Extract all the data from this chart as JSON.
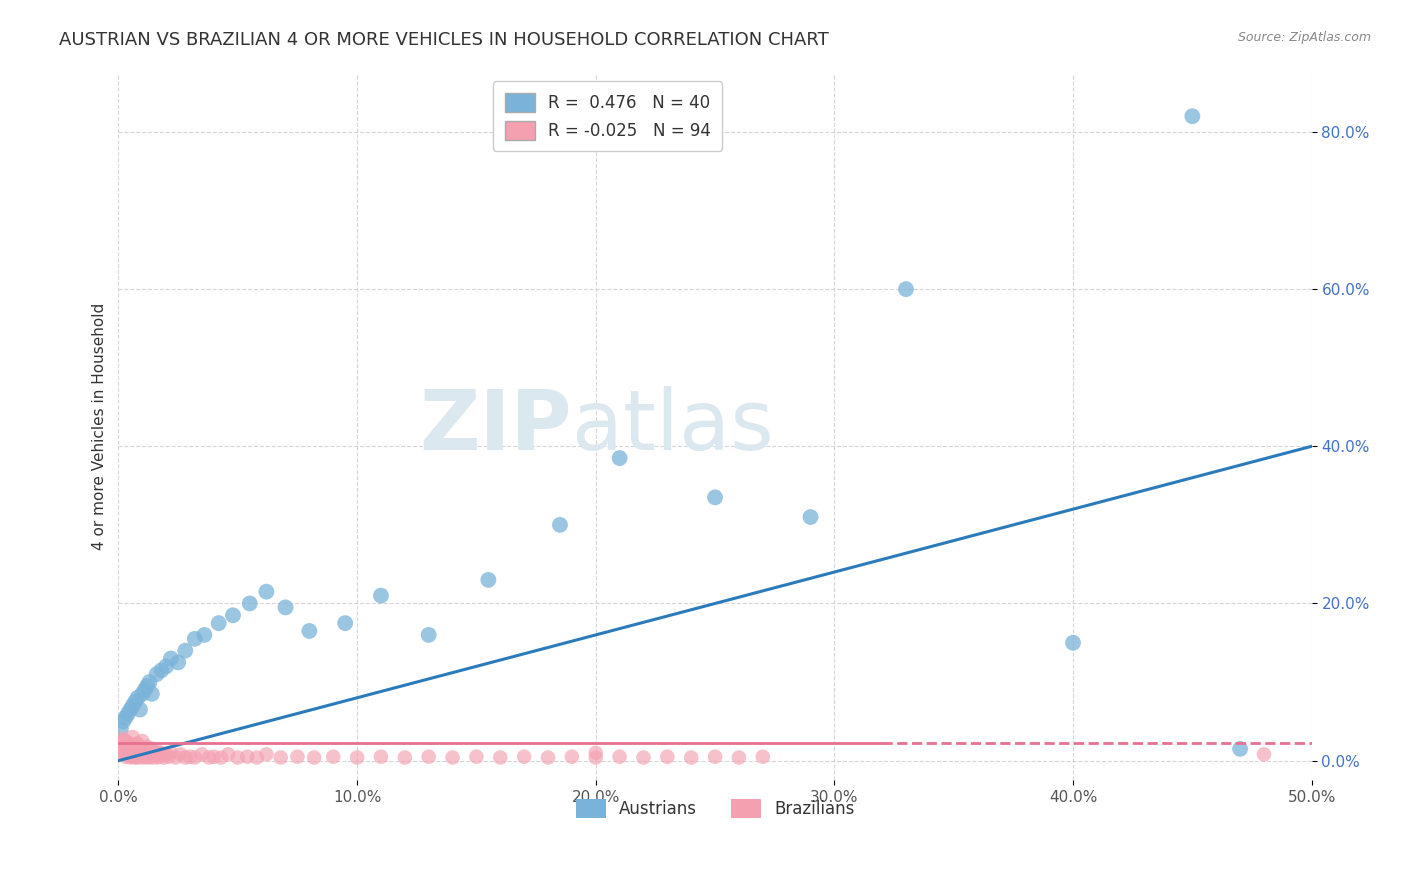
{
  "title": "AUSTRIAN VS BRAZILIAN 4 OR MORE VEHICLES IN HOUSEHOLD CORRELATION CHART",
  "source": "Source: ZipAtlas.com",
  "ylabel": "4 or more Vehicles in Household",
  "xlim": [
    0.0,
    0.5
  ],
  "ylim": [
    -0.025,
    0.875
  ],
  "yticks": [
    0.0,
    0.2,
    0.4,
    0.6,
    0.8
  ],
  "xticks": [
    0.0,
    0.1,
    0.2,
    0.3,
    0.4,
    0.5
  ],
  "xtick_labels": [
    "0.0%",
    "10.0%",
    "20.0%",
    "30.0%",
    "40.0%",
    "50.0%"
  ],
  "ytick_labels": [
    "0.0%",
    "20.0%",
    "40.0%",
    "60.0%",
    "80.0%"
  ],
  "austrian_color": "#7ab3d9",
  "brazilian_color": "#f4a0b0",
  "trend_blue": "#2b7bba",
  "trend_pink": "#e87090",
  "austrian_R": 0.476,
  "austrian_N": 40,
  "brazilian_R": -0.025,
  "brazilian_N": 94,
  "background_color": "#ffffff",
  "grid_color": "#cccccc",
  "title_fontsize": 13,
  "axis_label_fontsize": 11,
  "tick_fontsize": 11,
  "legend_fontsize": 12,
  "watermark_color": "#dce8f0",
  "austrian_line_start_y": 0.0,
  "austrian_line_end_y": 0.4,
  "brazilian_line_y": 0.022,
  "brazilian_line_end_x": 0.32,
  "austrian_x": [
    0.001,
    0.002,
    0.003,
    0.004,
    0.005,
    0.006,
    0.007,
    0.008,
    0.009,
    0.01,
    0.011,
    0.012,
    0.013,
    0.014,
    0.016,
    0.018,
    0.02,
    0.022,
    0.025,
    0.028,
    0.032,
    0.036,
    0.042,
    0.048,
    0.055,
    0.062,
    0.07,
    0.08,
    0.095,
    0.11,
    0.13,
    0.155,
    0.185,
    0.21,
    0.25,
    0.29,
    0.33,
    0.4,
    0.45,
    0.47
  ],
  "austrian_y": [
    0.04,
    0.05,
    0.055,
    0.06,
    0.065,
    0.07,
    0.075,
    0.08,
    0.065,
    0.085,
    0.09,
    0.095,
    0.1,
    0.085,
    0.11,
    0.115,
    0.12,
    0.13,
    0.125,
    0.14,
    0.155,
    0.16,
    0.175,
    0.185,
    0.2,
    0.215,
    0.195,
    0.165,
    0.175,
    0.21,
    0.16,
    0.23,
    0.3,
    0.385,
    0.335,
    0.31,
    0.6,
    0.15,
    0.82,
    0.015
  ],
  "brazilian_x": [
    0.001,
    0.001,
    0.001,
    0.002,
    0.002,
    0.002,
    0.003,
    0.003,
    0.003,
    0.004,
    0.004,
    0.004,
    0.005,
    0.005,
    0.005,
    0.006,
    0.006,
    0.006,
    0.007,
    0.007,
    0.007,
    0.008,
    0.008,
    0.008,
    0.009,
    0.009,
    0.01,
    0.01,
    0.011,
    0.011,
    0.012,
    0.012,
    0.013,
    0.013,
    0.014,
    0.015,
    0.016,
    0.016,
    0.017,
    0.018,
    0.019,
    0.02,
    0.021,
    0.022,
    0.024,
    0.026,
    0.028,
    0.03,
    0.032,
    0.035,
    0.038,
    0.04,
    0.043,
    0.046,
    0.05,
    0.054,
    0.058,
    0.062,
    0.068,
    0.075,
    0.082,
    0.09,
    0.1,
    0.11,
    0.12,
    0.13,
    0.14,
    0.15,
    0.16,
    0.17,
    0.18,
    0.19,
    0.2,
    0.21,
    0.22,
    0.23,
    0.24,
    0.25,
    0.26,
    0.27,
    0.002,
    0.003,
    0.004,
    0.005,
    0.006,
    0.007,
    0.008,
    0.009,
    0.01,
    0.012,
    0.014,
    0.016,
    0.2,
    0.48
  ],
  "brazilian_y": [
    0.008,
    0.015,
    0.022,
    0.01,
    0.018,
    0.025,
    0.005,
    0.012,
    0.02,
    0.008,
    0.016,
    0.023,
    0.004,
    0.01,
    0.018,
    0.005,
    0.012,
    0.02,
    0.004,
    0.01,
    0.018,
    0.004,
    0.012,
    0.02,
    0.005,
    0.015,
    0.004,
    0.012,
    0.005,
    0.015,
    0.004,
    0.012,
    0.005,
    0.015,
    0.004,
    0.01,
    0.004,
    0.012,
    0.005,
    0.01,
    0.004,
    0.008,
    0.005,
    0.01,
    0.004,
    0.008,
    0.004,
    0.005,
    0.004,
    0.008,
    0.004,
    0.005,
    0.004,
    0.008,
    0.004,
    0.005,
    0.004,
    0.008,
    0.004,
    0.005,
    0.004,
    0.005,
    0.004,
    0.005,
    0.004,
    0.005,
    0.004,
    0.005,
    0.004,
    0.005,
    0.004,
    0.005,
    0.004,
    0.005,
    0.004,
    0.005,
    0.004,
    0.005,
    0.004,
    0.005,
    0.028,
    0.025,
    0.015,
    0.02,
    0.03,
    0.018,
    0.022,
    0.012,
    0.025,
    0.018,
    0.015,
    0.01,
    0.01,
    0.008
  ]
}
